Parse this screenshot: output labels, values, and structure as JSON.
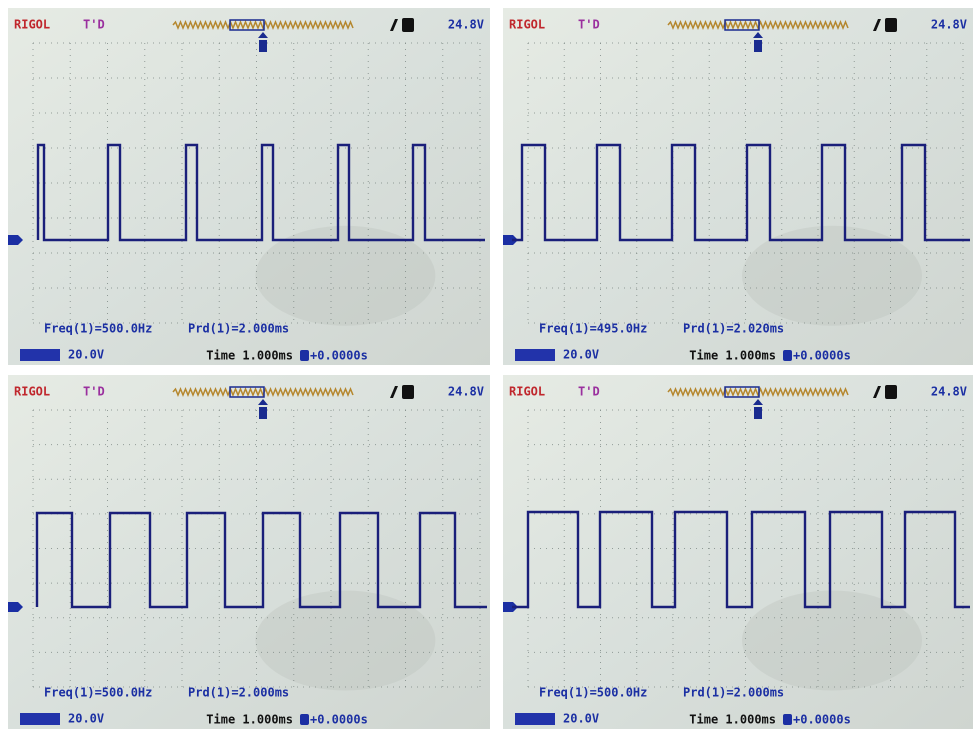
{
  "panels": [
    {
      "brand": "RIGOL",
      "mode": "T'D",
      "trigger_level": "24.8V",
      "frequency": "Freq(1)=500.0Hz",
      "period": "Prd(1)=2.000ms",
      "channel_scale": "20.0V",
      "timebase": "Time 1.000ms",
      "offset": "+0.0000s"
    },
    {
      "brand": "RIGOL",
      "mode": "T'D",
      "trigger_level": "24.8V",
      "frequency": "Freq(1)=495.0Hz",
      "period": "Prd(1)=2.020ms",
      "channel_scale": "20.0V",
      "timebase": "Time 1.000ms",
      "offset": "+0.0000s"
    },
    {
      "brand": "RIGOL",
      "mode": "T'D",
      "trigger_level": "24.8V",
      "frequency": "Freq(1)=500.0Hz",
      "period": "Prd(1)=2.000ms",
      "channel_scale": "20.0V",
      "timebase": "Time 1.000ms",
      "offset": "+0.0000s"
    },
    {
      "brand": "RIGOL",
      "mode": "T'D",
      "trigger_level": "24.8V",
      "frequency": "Freq(1)=500.0Hz",
      "period": "Prd(1)=2.000ms",
      "channel_scale": "20.0V",
      "timebase": "Time 1.000ms",
      "offset": "+0.0000s"
    }
  ]
}
